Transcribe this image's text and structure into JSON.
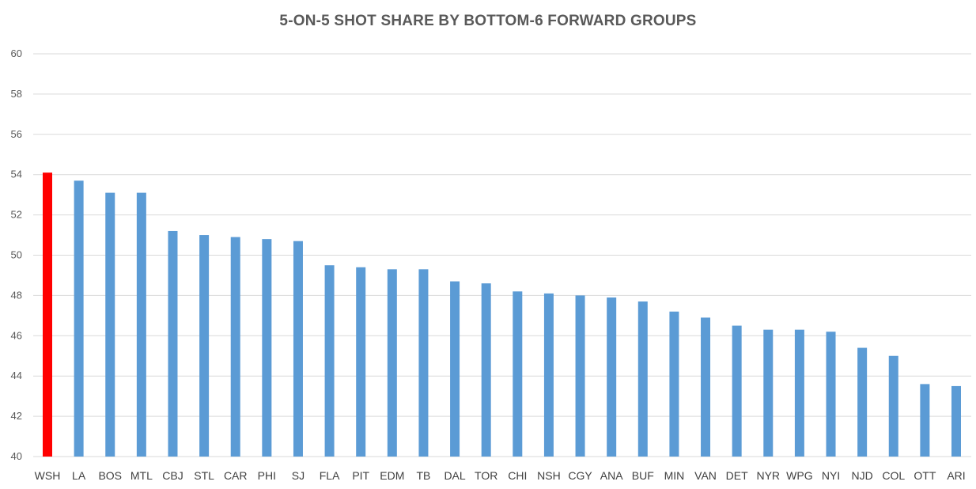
{
  "chart_data": {
    "type": "bar",
    "title": "5-ON-5 SHOT SHARE BY BOTTOM-6 FORWARD GROUPS",
    "xlabel": "",
    "ylabel": "",
    "ylim": [
      40,
      60
    ],
    "yticks": [
      40,
      42,
      44,
      46,
      48,
      50,
      52,
      54,
      56,
      58,
      60
    ],
    "grid": true,
    "default_color": "#5b9bd5",
    "highlight_color": "#ff0000",
    "highlight_category": "WSH",
    "categories": [
      "WSH",
      "LA",
      "BOS",
      "MTL",
      "CBJ",
      "STL",
      "CAR",
      "PHI",
      "SJ",
      "FLA",
      "PIT",
      "EDM",
      "TB",
      "DAL",
      "TOR",
      "CHI",
      "NSH",
      "CGY",
      "ANA",
      "BUF",
      "MIN",
      "VAN",
      "DET",
      "NYR",
      "WPG",
      "NYI",
      "NJD",
      "COL",
      "OTT",
      "ARI"
    ],
    "values": [
      54.1,
      53.7,
      53.1,
      53.1,
      51.2,
      51.0,
      50.9,
      50.8,
      50.7,
      49.5,
      49.4,
      49.3,
      49.3,
      48.7,
      48.6,
      48.2,
      48.1,
      48.0,
      47.9,
      47.7,
      47.2,
      46.9,
      46.5,
      46.3,
      46.3,
      46.2,
      45.4,
      45.0,
      43.6,
      43.5
    ]
  }
}
